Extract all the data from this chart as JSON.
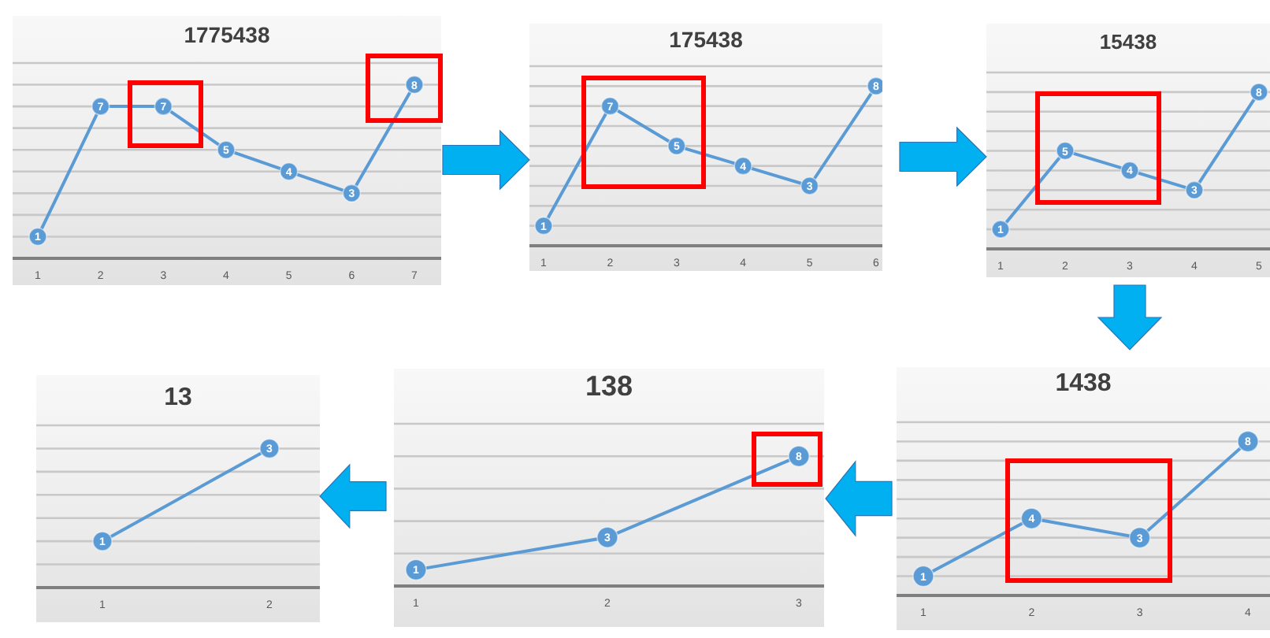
{
  "chart_data": [
    {
      "type": "line",
      "title": "1775438",
      "categories": [
        "1",
        "2",
        "3",
        "4",
        "5",
        "6",
        "7"
      ],
      "values": [
        1,
        7,
        7,
        5,
        4,
        3,
        8
      ],
      "color": "#5b9bd5",
      "ylim": [
        0,
        9
      ],
      "yticks": [
        {
          "value": 1,
          "label": null
        },
        {
          "value": 2,
          "label": null
        },
        {
          "value": 3,
          "label": null
        },
        {
          "value": 4,
          "label": null
        },
        {
          "value": 5,
          "label": null
        },
        {
          "value": 6,
          "label": null
        },
        {
          "value": 7,
          "label": null
        },
        {
          "value": 8,
          "label": null
        },
        {
          "value": 9,
          "label": null
        }
      ],
      "grid": "y",
      "tick_labels": "x",
      "marker": "circle",
      "data_labels": true
    },
    {
      "type": "line",
      "title": "175438",
      "categories": [
        "1",
        "2",
        "3",
        "4",
        "5",
        "6"
      ],
      "values": [
        1,
        7,
        5,
        4,
        3,
        8
      ],
      "color": "#5b9bd5",
      "ylim": [
        0,
        9
      ],
      "yticks": [
        {
          "value": 1,
          "label": null
        },
        {
          "value": 2,
          "label": null
        },
        {
          "value": 3,
          "label": null
        },
        {
          "value": 4,
          "label": null
        },
        {
          "value": 5,
          "label": null
        },
        {
          "value": 6,
          "label": null
        },
        {
          "value": 7,
          "label": null
        },
        {
          "value": 8,
          "label": null
        },
        {
          "value": 9,
          "label": null
        }
      ],
      "grid": "y",
      "tick_labels": "x",
      "marker": "circle",
      "data_labels": true
    },
    {
      "type": "line",
      "title": "15438",
      "categories": [
        "1",
        "2",
        "3",
        "4",
        "5"
      ],
      "values": [
        1,
        5,
        4,
        3,
        8
      ],
      "color": "#5b9bd5",
      "ylim": [
        0,
        9
      ],
      "yticks": [
        {
          "value": 1,
          "label": null
        },
        {
          "value": 2,
          "label": null
        },
        {
          "value": 3,
          "label": null
        },
        {
          "value": 4,
          "label": null
        },
        {
          "value": 5,
          "label": null
        },
        {
          "value": 6,
          "label": null
        },
        {
          "value": 7,
          "label": null
        },
        {
          "value": 8,
          "label": null
        },
        {
          "value": 9,
          "label": null
        }
      ],
      "grid": "y",
      "tick_labels": "x",
      "marker": "circle",
      "data_labels": true
    },
    {
      "type": "line",
      "title": "13",
      "categories": [
        "1",
        "2"
      ],
      "values": [
        1,
        3
      ],
      "color": "#5b9bd5",
      "ylim": [
        0,
        3.5
      ],
      "yticks": [
        {
          "value": 0.5,
          "label": null
        },
        {
          "value": 1,
          "label": null
        },
        {
          "value": 1.5,
          "label": null
        },
        {
          "value": 2,
          "label": null
        },
        {
          "value": 2.5,
          "label": null
        },
        {
          "value": 3,
          "label": null
        },
        {
          "value": 3.5,
          "label": null
        }
      ],
      "grid": "y",
      "tick_labels": "x",
      "marker": "circle",
      "data_labels": true
    },
    {
      "type": "line",
      "title": "138",
      "categories": [
        "1",
        "2",
        "3"
      ],
      "values": [
        1,
        3,
        8
      ],
      "color": "#5b9bd5",
      "ylim": [
        0,
        10
      ],
      "yticks": [
        {
          "value": 2,
          "label": null
        },
        {
          "value": 4,
          "label": null
        },
        {
          "value": 6,
          "label": null
        },
        {
          "value": 8,
          "label": null
        },
        {
          "value": 10,
          "label": null
        }
      ],
      "grid": "y",
      "tick_labels": "x",
      "marker": "circle",
      "data_labels": true
    },
    {
      "type": "line",
      "title": "1438",
      "categories": [
        "1",
        "2",
        "3",
        "4"
      ],
      "values": [
        1,
        4,
        3,
        8
      ],
      "color": "#5b9bd5",
      "ylim": [
        0,
        9
      ],
      "yticks": [
        {
          "value": 1,
          "label": null
        },
        {
          "value": 2,
          "label": null
        },
        {
          "value": 3,
          "label": null
        },
        {
          "value": 4,
          "label": null
        },
        {
          "value": 5,
          "label": null
        },
        {
          "value": 6,
          "label": null
        },
        {
          "value": 7,
          "label": null
        },
        {
          "value": 8,
          "label": null
        },
        {
          "value": 9,
          "label": null
        }
      ],
      "grid": "y",
      "tick_labels": "x",
      "marker": "circle",
      "data_labels": true
    }
  ]
}
